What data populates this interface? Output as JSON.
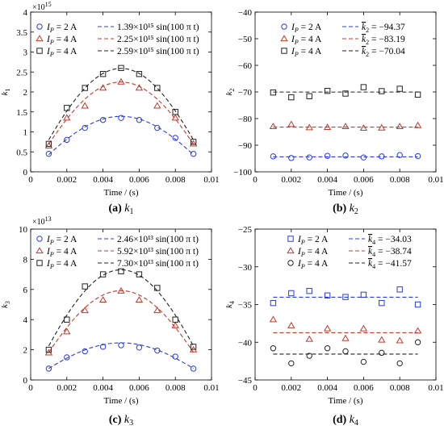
{
  "chart_data": [
    {
      "type": "scatter",
      "id": "a",
      "caption": {
        "letter": "(a)",
        "symbol": "k",
        "sub": "1"
      },
      "xlabel": "Time / (s)",
      "ylabel": {
        "symbol": "k",
        "sub": "1"
      },
      "xlim": [
        0,
        0.01
      ],
      "ylim": [
        0,
        4
      ],
      "x_ticks": [
        "0",
        "0.002",
        "0.004",
        "0.006",
        "0.008",
        "0.01"
      ],
      "y_ticks": [
        "0",
        "0.5",
        "1",
        "1.5",
        "2",
        "2.5",
        "3",
        "3.5",
        "4"
      ],
      "multiplier": {
        "base": "×10",
        "exp": "15"
      },
      "fit_type": "sine",
      "series": [
        {
          "ip_label": "I",
          "ip_sub": "P",
          "ip_value": "= 2 A",
          "marker": "circle",
          "color": "#2b3bd9",
          "fit_label": "1.39×10¹⁵ sin(100 π t)",
          "fit_amplitude": 1.39,
          "x": [
            0.001,
            0.002,
            0.003,
            0.004,
            0.005,
            0.006,
            0.007,
            0.008,
            0.009
          ],
          "y": [
            0.45,
            0.8,
            1.1,
            1.3,
            1.35,
            1.3,
            1.1,
            0.85,
            0.45
          ]
        },
        {
          "ip_label": "I",
          "ip_sub": "P",
          "ip_value": "= 4 A",
          "marker": "triangle",
          "color": "#c0392b",
          "fit_label": "2.25×10¹⁵ sin(100 π t)",
          "fit_amplitude": 2.25,
          "x": [
            0.001,
            0.002,
            0.003,
            0.004,
            0.005,
            0.006,
            0.007,
            0.008,
            0.009
          ],
          "y": [
            0.65,
            1.35,
            1.65,
            2.1,
            2.25,
            2.1,
            1.65,
            1.35,
            0.7
          ]
        },
        {
          "ip_label": "I",
          "ip_sub": "P",
          "ip_value": "= 4 A",
          "marker": "square",
          "color": "#222222",
          "fit_label": "2.59×10¹⁵ sin(100 π t)",
          "fit_amplitude": 2.59,
          "x": [
            0.001,
            0.002,
            0.003,
            0.004,
            0.005,
            0.006,
            0.007,
            0.008,
            0.009
          ],
          "y": [
            0.7,
            1.6,
            2.1,
            2.45,
            2.6,
            2.45,
            2.1,
            1.5,
            0.75
          ]
        }
      ]
    },
    {
      "type": "scatter",
      "id": "b",
      "caption": {
        "letter": "(b)",
        "symbol": "k",
        "sub": "2"
      },
      "xlabel": "Time / (s)",
      "ylabel": {
        "symbol": "k",
        "sub": "2"
      },
      "xlim": [
        0,
        0.01
      ],
      "ylim": [
        -100,
        -40
      ],
      "x_ticks": [
        "0",
        "0.002",
        "0.004",
        "0.006",
        "0.008",
        "0.01"
      ],
      "y_ticks": [
        "−100",
        "−90",
        "−80",
        "−70",
        "−60",
        "−50",
        "−40"
      ],
      "fit_type": "constant",
      "series": [
        {
          "ip_label": "I",
          "ip_sub": "P",
          "ip_value": "= 2 A",
          "marker": "circle",
          "color": "#2b3bd9",
          "fit_symbol": "k",
          "fit_sub": "2",
          "fit_value": "= −94.37",
          "fit_constant": -94.37,
          "x": [
            0.001,
            0.002,
            0.003,
            0.004,
            0.005,
            0.006,
            0.007,
            0.008,
            0.009
          ],
          "y": [
            -94.2,
            -94.8,
            -94.6,
            -94.0,
            -93.9,
            -94.6,
            -94.2,
            -93.7,
            -94.1
          ]
        },
        {
          "ip_label": "I",
          "ip_sub": "P",
          "ip_value": "= 4 A",
          "marker": "triangle",
          "color": "#c0392b",
          "fit_symbol": "k",
          "fit_sub": "2",
          "fit_value": "= −83.19",
          "fit_constant": -83.19,
          "x": [
            0.001,
            0.002,
            0.003,
            0.004,
            0.005,
            0.006,
            0.007,
            0.008,
            0.009
          ],
          "y": [
            -83.0,
            -82.2,
            -83.4,
            -83.3,
            -83.0,
            -83.6,
            -83.5,
            -83.0,
            -82.6
          ]
        },
        {
          "ip_label": "I",
          "ip_sub": "P",
          "ip_value": "= 4 A",
          "marker": "square",
          "color": "#222222",
          "fit_symbol": "k",
          "fit_sub": "2",
          "fit_value": "= −70.04",
          "fit_constant": -70.04,
          "x": [
            0.001,
            0.002,
            0.003,
            0.004,
            0.005,
            0.006,
            0.007,
            0.008,
            0.009
          ],
          "y": [
            -70.2,
            -72.0,
            -71.6,
            -69.6,
            -70.6,
            -68.2,
            -69.7,
            -68.8,
            -71.0
          ]
        }
      ]
    },
    {
      "type": "scatter",
      "id": "c",
      "caption": {
        "letter": "(c)",
        "symbol": "k",
        "sub": "3"
      },
      "xlabel": "Time / (s)",
      "ylabel": {
        "symbol": "k",
        "sub": "3"
      },
      "xlim": [
        0,
        0.01
      ],
      "ylim": [
        0,
        10
      ],
      "x_ticks": [
        "0",
        "0.002",
        "0.004",
        "0.006",
        "0.008",
        "0.01"
      ],
      "y_ticks": [
        "0",
        "2",
        "4",
        "6",
        "8",
        "10"
      ],
      "multiplier": {
        "base": "×10",
        "exp": "13"
      },
      "fit_type": "sine",
      "series": [
        {
          "ip_label": "I",
          "ip_sub": "P",
          "ip_value": "= 2 A",
          "marker": "circle",
          "color": "#2b3bd9",
          "fit_label": "2.46×10¹³ sin(100 π t)",
          "fit_amplitude": 2.46,
          "x": [
            0.001,
            0.002,
            0.003,
            0.004,
            0.005,
            0.006,
            0.007,
            0.008,
            0.009
          ],
          "y": [
            0.75,
            1.5,
            1.9,
            2.2,
            2.3,
            2.15,
            1.95,
            1.55,
            0.75
          ]
        },
        {
          "ip_label": "I",
          "ip_sub": "P",
          "ip_value": "= 4 A",
          "marker": "triangle",
          "color": "#c0392b",
          "fit_label": "5.92×10¹³ sin(100 π t)",
          "fit_amplitude": 5.92,
          "x": [
            0.001,
            0.002,
            0.003,
            0.004,
            0.005,
            0.006,
            0.007,
            0.008,
            0.009
          ],
          "y": [
            1.8,
            3.2,
            4.6,
            5.3,
            5.9,
            5.3,
            4.6,
            3.6,
            2.0
          ]
        },
        {
          "ip_label": "I",
          "ip_sub": "P",
          "ip_value": "= 4 A",
          "marker": "square",
          "color": "#222222",
          "fit_label": "7.30×10¹³ sin(100 π t)",
          "fit_amplitude": 7.3,
          "x": [
            0.001,
            0.002,
            0.003,
            0.004,
            0.005,
            0.006,
            0.007,
            0.008,
            0.009
          ],
          "y": [
            2.0,
            4.0,
            6.2,
            7.0,
            7.2,
            7.0,
            6.1,
            4.0,
            2.2
          ]
        }
      ]
    },
    {
      "type": "scatter",
      "id": "d",
      "caption": {
        "letter": "(d)",
        "symbol": "k",
        "sub": "4"
      },
      "xlabel": "Time / (s)",
      "ylabel": {
        "symbol": "k",
        "sub": "4"
      },
      "xlim": [
        0,
        0.01
      ],
      "ylim": [
        -45,
        -25
      ],
      "x_ticks": [
        "0",
        "0.002",
        "0.004",
        "0.006",
        "0.008",
        "0.01"
      ],
      "y_ticks": [
        "−45",
        "−40",
        "−35",
        "−30",
        "−25"
      ],
      "fit_type": "constant",
      "series": [
        {
          "ip_label": "I",
          "ip_sub": "P",
          "ip_value": "= 2 A",
          "marker": "square",
          "color": "#2b3bd9",
          "fit_symbol": "k",
          "fit_sub": "4",
          "fit_value": "= −34.03",
          "fit_constant": -34.03,
          "x": [
            0.001,
            0.002,
            0.003,
            0.004,
            0.005,
            0.006,
            0.007,
            0.008,
            0.009
          ],
          "y": [
            -34.8,
            -33.5,
            -33.2,
            -33.8,
            -34.0,
            -33.7,
            -34.8,
            -33.0,
            -35.0
          ]
        },
        {
          "ip_label": "I",
          "ip_sub": "P",
          "ip_value": "= 4 A",
          "marker": "triangle",
          "color": "#c0392b",
          "fit_symbol": "k",
          "fit_sub": "4",
          "fit_value": "= −38.74",
          "fit_constant": -38.74,
          "x": [
            0.001,
            0.002,
            0.003,
            0.004,
            0.005,
            0.006,
            0.007,
            0.008,
            0.009
          ],
          "y": [
            -37.0,
            -37.8,
            -39.6,
            -38.2,
            -39.5,
            -38.2,
            -39.7,
            -39.8,
            -38.5
          ]
        },
        {
          "ip_label": "I",
          "ip_sub": "P",
          "ip_value": "= 4 A",
          "marker": "circle",
          "color": "#222222",
          "fit_symbol": "k",
          "fit_sub": "4",
          "fit_value": "= −41.57",
          "fit_constant": -41.57,
          "x": [
            0.001,
            0.002,
            0.003,
            0.004,
            0.005,
            0.006,
            0.007,
            0.008,
            0.009
          ],
          "y": [
            -40.8,
            -42.8,
            -41.8,
            -40.8,
            -41.2,
            -42.6,
            -41.4,
            -42.8,
            -40.0
          ]
        }
      ]
    }
  ]
}
